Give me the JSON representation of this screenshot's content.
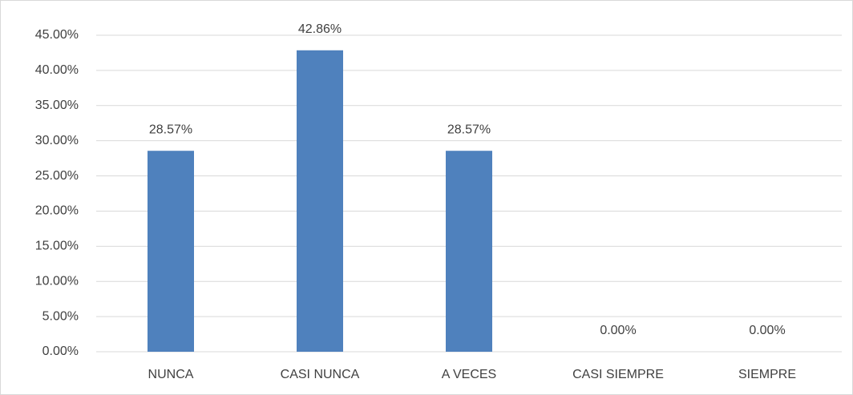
{
  "chart_data": {
    "type": "bar",
    "categories": [
      "NUNCA",
      "CASI NUNCA",
      "A VECES",
      "CASI SIEMPRE",
      "SIEMPRE"
    ],
    "values": [
      28.57,
      42.86,
      28.57,
      0,
      0
    ],
    "value_labels": [
      "28.57%",
      "42.86%",
      "28.57%",
      "0.00%",
      "0.00%"
    ],
    "color": "#4f81bd",
    "ylim": [
      0,
      45
    ],
    "yticks": [
      {
        "value": 0,
        "label": "0.00%"
      },
      {
        "value": 5,
        "label": "5.00%"
      },
      {
        "value": 10,
        "label": "10.00%"
      },
      {
        "value": 15,
        "label": "15.00%"
      },
      {
        "value": 20,
        "label": "20.00%"
      },
      {
        "value": 25,
        "label": "25.00%"
      },
      {
        "value": 30,
        "label": "30.00%"
      },
      {
        "value": 35,
        "label": "35.00%"
      },
      {
        "value": 40,
        "label": "40.00%"
      },
      {
        "value": 45,
        "label": "45.00%"
      }
    ],
    "grid": true
  }
}
